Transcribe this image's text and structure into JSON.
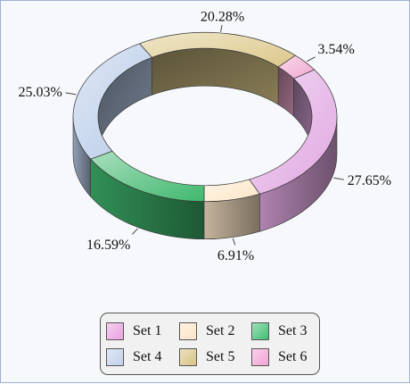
{
  "chart_data": {
    "type": "pie",
    "style": "3d-donut",
    "categories": [
      "Set 1",
      "Set 2",
      "Set 3",
      "Set 4",
      "Set 5",
      "Set 6"
    ],
    "values": [
      27.65,
      6.91,
      16.59,
      25.03,
      20.28,
      3.54
    ],
    "labels": [
      "27.65%",
      "6.91%",
      "16.59%",
      "25.03%",
      "20.28%",
      "3.54%"
    ],
    "slice_colors": [
      "#e0a8e2",
      "#fde6c8",
      "#3fb86e",
      "#b8cbe8",
      "#dcc88a",
      "#f0a8d0"
    ],
    "legend_colors": [
      "#e8a0e0",
      "#fde4c6",
      "#3fbf72",
      "#c1d0ea",
      "#d8c383",
      "#f2a3d4"
    ],
    "legend_position": "bottom"
  }
}
